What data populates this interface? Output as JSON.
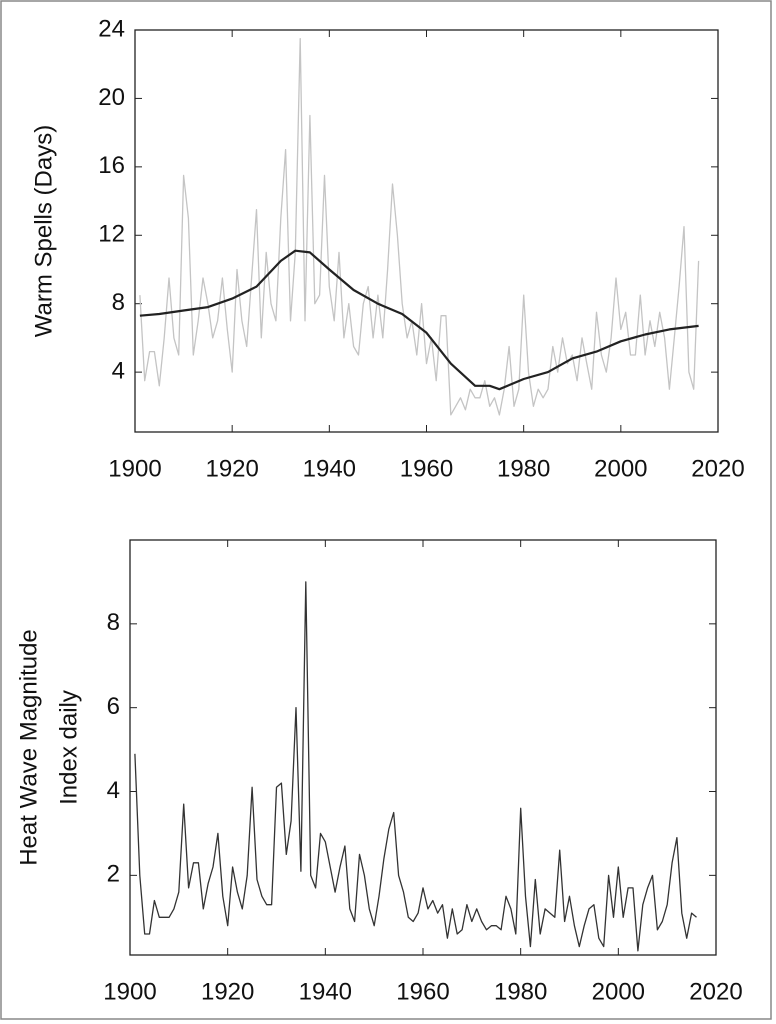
{
  "chart_data": [
    {
      "type": "line",
      "ylabel": "Warm Spells (Days)",
      "xlim": [
        1900,
        2020
      ],
      "xticks": [
        1900,
        1920,
        1940,
        1960,
        1980,
        2000,
        2020
      ],
      "ylim": [
        0.5,
        24
      ],
      "yticks": [
        4,
        8,
        12,
        16,
        20,
        24
      ],
      "series": [
        {
          "color": "#c4c4c4",
          "x": [
            1901,
            1902,
            1903,
            1904,
            1905,
            1906,
            1907,
            1908,
            1909,
            1910,
            1911,
            1912,
            1913,
            1914,
            1915,
            1916,
            1917,
            1918,
            1919,
            1920,
            1921,
            1922,
            1923,
            1924,
            1925,
            1926,
            1927,
            1928,
            1929,
            1930,
            1931,
            1932,
            1933,
            1934,
            1935,
            1936,
            1937,
            1938,
            1939,
            1940,
            1941,
            1942,
            1943,
            1944,
            1945,
            1946,
            1947,
            1948,
            1949,
            1950,
            1951,
            1952,
            1953,
            1954,
            1955,
            1956,
            1957,
            1958,
            1959,
            1960,
            1961,
            1962,
            1963,
            1964,
            1965,
            1966,
            1967,
            1968,
            1969,
            1970,
            1971,
            1972,
            1973,
            1974,
            1975,
            1976,
            1977,
            1978,
            1979,
            1980,
            1981,
            1982,
            1983,
            1984,
            1985,
            1986,
            1987,
            1988,
            1989,
            1990,
            1991,
            1992,
            1993,
            1994,
            1995,
            1996,
            1997,
            1998,
            1999,
            2000,
            2001,
            2002,
            2003,
            2004,
            2005,
            2006,
            2007,
            2008,
            2009,
            2010,
            2011,
            2012,
            2013,
            2014,
            2015,
            2016
          ],
          "values": [
            8.5,
            3.5,
            5.2,
            5.2,
            3.2,
            6,
            9.5,
            6,
            5,
            15.5,
            13,
            5,
            7,
            9.5,
            8,
            6,
            7,
            9.5,
            6.5,
            4,
            10,
            7,
            5.5,
            9.5,
            13.5,
            6,
            11,
            8,
            7,
            13,
            17,
            7,
            11,
            23.5,
            7,
            19,
            8,
            8.5,
            15.5,
            9,
            7,
            11,
            6,
            8,
            5.5,
            5,
            8,
            9,
            6,
            8.5,
            6,
            10,
            15,
            12,
            8,
            6,
            7,
            5,
            8,
            4.5,
            6,
            3.5,
            7.3,
            7.3,
            1.5,
            2,
            2.5,
            1.8,
            3,
            2.5,
            2.5,
            3.5,
            2,
            2.5,
            1.5,
            3,
            5.5,
            2,
            3,
            8.5,
            4,
            2,
            3,
            2.5,
            3,
            5.5,
            4,
            6,
            4.5,
            5,
            3.5,
            6,
            4.5,
            3,
            7.5,
            5,
            4,
            6,
            9.5,
            6.5,
            7.5,
            5,
            5,
            8.5,
            5,
            7,
            5.5,
            7.5,
            6,
            3,
            6,
            9,
            12.5,
            4,
            3,
            10.5
          ]
        },
        {
          "color": "#222222",
          "x": [
            1901,
            1905,
            1910,
            1915,
            1920,
            1925,
            1930,
            1933,
            1936,
            1940,
            1945,
            1950,
            1955,
            1960,
            1965,
            1970,
            1973,
            1975,
            1980,
            1985,
            1990,
            1995,
            2000,
            2005,
            2010,
            2016
          ],
          "values": [
            7.3,
            7.4,
            7.6,
            7.8,
            8.3,
            9,
            10.5,
            11.1,
            11,
            10,
            8.8,
            8,
            7.4,
            6.3,
            4.5,
            3.2,
            3.2,
            3,
            3.6,
            4,
            4.8,
            5.2,
            5.8,
            6.2,
            6.5,
            6.7
          ]
        }
      ]
    },
    {
      "type": "line",
      "ylabel": [
        "Heat Wave Magnitude",
        "Index daily"
      ],
      "xlim": [
        1900,
        2020
      ],
      "xticks": [
        1900,
        1920,
        1940,
        1960,
        1980,
        2000,
        2020
      ],
      "ylim": [
        0.1,
        10
      ],
      "yticks": [
        2,
        4,
        6,
        8
      ],
      "series": [
        {
          "color": "#333333",
          "x": [
            1901,
            1902,
            1903,
            1904,
            1905,
            1906,
            1907,
            1908,
            1909,
            1910,
            1911,
            1912,
            1913,
            1914,
            1915,
            1916,
            1917,
            1918,
            1919,
            1920,
            1921,
            1922,
            1923,
            1924,
            1925,
            1926,
            1927,
            1928,
            1929,
            1930,
            1931,
            1932,
            1933,
            1934,
            1935,
            1936,
            1937,
            1938,
            1939,
            1940,
            1941,
            1942,
            1943,
            1944,
            1945,
            1946,
            1947,
            1948,
            1949,
            1950,
            1951,
            1952,
            1953,
            1954,
            1955,
            1956,
            1957,
            1958,
            1959,
            1960,
            1961,
            1962,
            1963,
            1964,
            1965,
            1966,
            1967,
            1968,
            1969,
            1970,
            1971,
            1972,
            1973,
            1974,
            1975,
            1976,
            1977,
            1978,
            1979,
            1980,
            1981,
            1982,
            1983,
            1984,
            1985,
            1986,
            1987,
            1988,
            1989,
            1990,
            1991,
            1992,
            1993,
            1994,
            1995,
            1996,
            1997,
            1998,
            1999,
            2000,
            2001,
            2002,
            2003,
            2004,
            2005,
            2006,
            2007,
            2008,
            2009,
            2010,
            2011,
            2012,
            2013,
            2014,
            2015,
            2016
          ],
          "values": [
            4.9,
            2,
            0.6,
            0.6,
            1.4,
            1,
            1,
            1,
            1.2,
            1.6,
            3.7,
            1.7,
            2.3,
            2.3,
            1.2,
            1.8,
            2.2,
            3,
            1.5,
            0.8,
            2.2,
            1.6,
            1.2,
            2,
            4.1,
            1.9,
            1.5,
            1.3,
            1.3,
            4.1,
            4.2,
            2.5,
            3.3,
            6,
            2.1,
            9,
            2,
            1.7,
            3,
            2.8,
            2.2,
            1.6,
            2.2,
            2.7,
            1.2,
            0.9,
            2.5,
            2,
            1.2,
            0.8,
            1.5,
            2.4,
            3.1,
            3.5,
            2,
            1.6,
            1,
            0.9,
            1.1,
            1.7,
            1.2,
            1.4,
            1.1,
            1.3,
            0.5,
            1.2,
            0.6,
            0.7,
            1.3,
            0.9,
            1.2,
            0.9,
            0.7,
            0.8,
            0.8,
            0.7,
            1.5,
            1.2,
            0.6,
            3.6,
            1.5,
            0.3,
            1.9,
            0.6,
            1.2,
            1.1,
            1,
            2.6,
            0.9,
            1.5,
            0.8,
            0.3,
            0.8,
            1.2,
            1.3,
            0.5,
            0.3,
            2,
            1,
            2.2,
            1,
            1.7,
            1.7,
            0.2,
            1.3,
            1.7,
            2,
            0.7,
            0.9,
            1.3,
            2.3,
            2.9,
            1.1,
            0.5,
            1.1,
            1
          ]
        }
      ]
    }
  ]
}
